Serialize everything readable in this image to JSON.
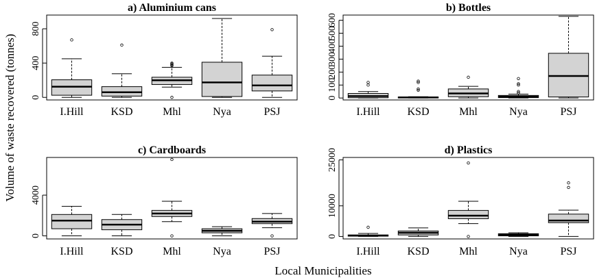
{
  "figure": {
    "ylabel": "Volume of waste recovered (tonnes)",
    "xlabel": "Local Municipalities"
  },
  "chart_data": [
    {
      "type": "boxplot",
      "title": "a) Aluminium cans",
      "categories": [
        "I.Hill",
        "KSD",
        "Mhl",
        "Nya",
        "PSJ"
      ],
      "yticks": [
        0,
        400,
        800
      ],
      "ylim": [
        -30,
        960
      ],
      "boxes": [
        {
          "min": 0,
          "q1": 25,
          "median": 125,
          "q3": 205,
          "max": 450,
          "outliers": [
            670
          ]
        },
        {
          "min": 0,
          "q1": 15,
          "median": 60,
          "q3": 125,
          "max": 275,
          "outliers": [
            610
          ]
        },
        {
          "min": 120,
          "q1": 150,
          "median": 200,
          "q3": 235,
          "max": 350,
          "outliers": [
            0,
            370,
            380,
            390,
            400
          ]
        },
        {
          "min": 0,
          "q1": 10,
          "median": 175,
          "q3": 410,
          "max": 920,
          "outliers": []
        },
        {
          "min": 0,
          "q1": 75,
          "median": 140,
          "q3": 260,
          "max": 480,
          "outliers": [
            790
          ]
        }
      ]
    },
    {
      "type": "boxplot",
      "title": "b) Bottles",
      "categories": [
        "I.Hill",
        "KSD",
        "Mhl",
        "Nya",
        "PSJ"
      ],
      "yticks": [
        0,
        100,
        200,
        300,
        400,
        500,
        600
      ],
      "ylim": [
        -15,
        640
      ],
      "boxes": [
        {
          "min": 0,
          "q1": 2,
          "median": 15,
          "q3": 35,
          "max": 50,
          "outliers": [
            100,
            120
          ]
        },
        {
          "min": 0,
          "q1": 0,
          "median": 5,
          "q3": 8,
          "max": 10,
          "outliers": [
            60,
            70,
            120,
            130
          ]
        },
        {
          "min": 0,
          "q1": 10,
          "median": 35,
          "q3": 70,
          "max": 90,
          "outliers": [
            160
          ]
        },
        {
          "min": 0,
          "q1": 3,
          "median": 10,
          "q3": 20,
          "max": 30,
          "outliers": [
            40,
            50,
            100,
            110,
            150
          ]
        },
        {
          "min": 0,
          "q1": 8,
          "median": 170,
          "q3": 345,
          "max": 630,
          "outliers": []
        }
      ]
    },
    {
      "type": "boxplot",
      "title": "c) Cardboards",
      "categories": [
        "I.Hill",
        "KSD",
        "Mhl",
        "Nya",
        "PSJ"
      ],
      "yticks": [
        0,
        4000
      ],
      "ylim": [
        -300,
        7700
      ],
      "boxes": [
        {
          "min": 0,
          "q1": 700,
          "median": 1500,
          "q3": 2100,
          "max": 2900,
          "outliers": []
        },
        {
          "min": 0,
          "q1": 600,
          "median": 1100,
          "q3": 1600,
          "max": 2100,
          "outliers": []
        },
        {
          "min": 1400,
          "q1": 1900,
          "median": 2200,
          "q3": 2500,
          "max": 3400,
          "outliers": [
            0,
            7500
          ]
        },
        {
          "min": 0,
          "q1": 300,
          "median": 500,
          "q3": 700,
          "max": 900,
          "outliers": []
        },
        {
          "min": 800,
          "q1": 1200,
          "median": 1400,
          "q3": 1700,
          "max": 2200,
          "outliers": [
            0
          ]
        }
      ]
    },
    {
      "type": "boxplot",
      "title": "d) Plastics",
      "categories": [
        "I.Hill",
        "KSD",
        "Mhl",
        "Nya",
        "PSJ"
      ],
      "yticks": [
        0,
        10000,
        25000
      ],
      "ylim": [
        -800,
        25800
      ],
      "boxes": [
        {
          "min": 0,
          "q1": 100,
          "median": 300,
          "q3": 500,
          "max": 1000,
          "outliers": [
            3000
          ]
        },
        {
          "min": 0,
          "q1": 500,
          "median": 1200,
          "q3": 1800,
          "max": 2800,
          "outliers": []
        },
        {
          "min": 4200,
          "q1": 5800,
          "median": 6800,
          "q3": 8500,
          "max": 11500,
          "outliers": [
            0,
            24000
          ]
        },
        {
          "min": 0,
          "q1": 200,
          "median": 600,
          "q3": 900,
          "max": 1200,
          "outliers": []
        },
        {
          "min": 0,
          "q1": 4500,
          "median": 5200,
          "q3": 7300,
          "max": 8600,
          "outliers": [
            16000,
            17500
          ]
        }
      ]
    }
  ]
}
